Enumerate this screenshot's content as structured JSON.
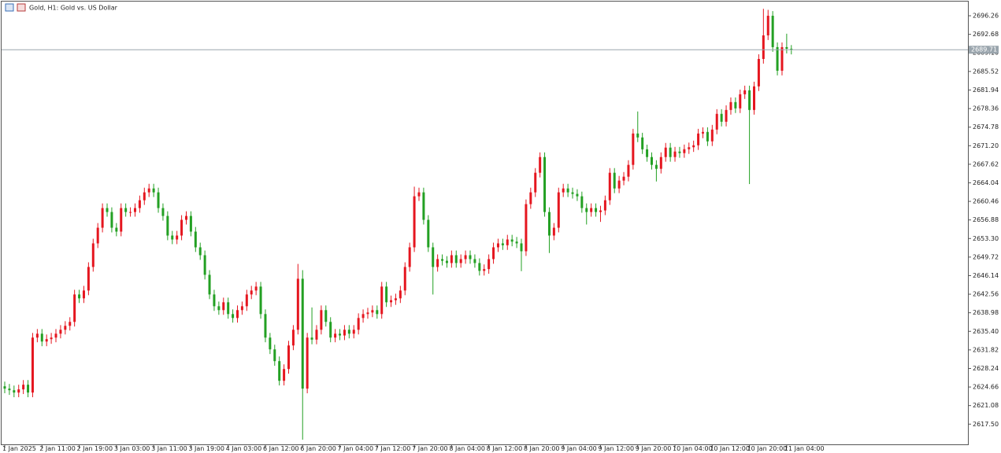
{
  "chart_data": {
    "type": "candlestick",
    "title": "Gold, H1:  Gold vs. US Dollar",
    "up_color": "#e5161f",
    "down_color": "#23a023",
    "ylim": [
      2613.6,
      2699.3
    ],
    "yticks": [
      2696.26,
      2692.68,
      {
        "value": 2689.1,
        "label": "2689.10"
      },
      2685.52,
      2681.94,
      2678.36,
      2674.78,
      {
        "value": 2671.2,
        "label": "2671.20"
      },
      2667.62,
      2664.04,
      2660.46,
      2656.88,
      {
        "value": 2653.3,
        "label": "2653.30"
      },
      2649.72,
      2646.14,
      2642.56,
      2638.98,
      {
        "value": 2635.4,
        "label": "2635.40"
      },
      2631.82,
      2628.24,
      2624.66,
      2621.08,
      {
        "value": 2617.5,
        "label": "2617.50"
      }
    ],
    "current_price": 2689.71,
    "categories": [
      "1 Jan 2025",
      null,
      null,
      null,
      null,
      null,
      null,
      null,
      "2 Jan 11:00",
      null,
      null,
      null,
      null,
      null,
      null,
      null,
      "2 Jan 19:00",
      null,
      null,
      null,
      null,
      null,
      null,
      null,
      "3 Jan 03:00",
      null,
      null,
      null,
      null,
      null,
      null,
      null,
      "3 Jan 11:00",
      null,
      null,
      null,
      null,
      null,
      null,
      null,
      "3 Jan 19:00",
      null,
      null,
      null,
      null,
      null,
      null,
      null,
      "4 Jan 03:00",
      null,
      null,
      null,
      null,
      null,
      null,
      null,
      "6 Jan 12:00",
      null,
      null,
      null,
      null,
      null,
      null,
      null,
      "6 Jan 20:00",
      null,
      null,
      null,
      null,
      null,
      null,
      null,
      "7 Jan 04:00",
      null,
      null,
      null,
      null,
      null,
      null,
      null,
      "7 Jan 12:00",
      null,
      null,
      null,
      null,
      null,
      null,
      null,
      "7 Jan 20:00",
      null,
      null,
      null,
      null,
      null,
      null,
      null,
      "8 Jan 04:00",
      null,
      null,
      null,
      null,
      null,
      null,
      null,
      "8 Jan 12:00",
      null,
      null,
      null,
      null,
      null,
      null,
      null,
      "8 Jan 20:00",
      null,
      null,
      null,
      null,
      null,
      null,
      null,
      "9 Jan 04:00",
      null,
      null,
      null,
      null,
      null,
      null,
      null,
      "9 Jan 12:00",
      null,
      null,
      null,
      null,
      null,
      null,
      null,
      "9 Jan 20:00",
      null,
      null,
      null,
      null,
      null,
      null,
      null,
      "10 Jan 04:00",
      null,
      null,
      null,
      null,
      null,
      null,
      null,
      "10 Jan 12:00",
      null,
      null,
      null,
      null,
      null,
      null,
      null,
      "10 Jan 20:00",
      null,
      null,
      null,
      null,
      null,
      null,
      null,
      "11 Jan 04:00",
      null
    ],
    "ohlc": [
      [
        2624.8,
        2625.7,
        2623.45,
        2624.35
      ],
      [
        2624.35,
        2625.25,
        2623.14,
        2624.04
      ],
      [
        2624.04,
        2624.94,
        2622.69,
        2623.59
      ],
      [
        2623.59,
        2625.1,
        2622.69,
        2624.2
      ],
      [
        2624.2,
        2626.0,
        2623.3,
        2625.1
      ],
      [
        2625.1,
        2626.0,
        2622.69,
        2623.59
      ],
      [
        2623.59,
        2635.09,
        2622.69,
        2634.19
      ],
      [
        2634.19,
        2635.84,
        2633.29,
        2634.94
      ],
      [
        2634.94,
        2635.84,
        2632.53,
        2633.43
      ],
      [
        2633.43,
        2634.79,
        2632.53,
        2633.89
      ],
      [
        2633.89,
        2635.09,
        2632.99,
        2634.19
      ],
      [
        2634.19,
        2635.84,
        2633.29,
        2634.94
      ],
      [
        2634.94,
        2636.6,
        2634.04,
        2635.7
      ],
      [
        2635.7,
        2637.36,
        2634.8,
        2636.46
      ],
      [
        2636.46,
        2638.12,
        2635.56,
        2637.22
      ],
      [
        2637.22,
        2643.41,
        2636.32,
        2642.51
      ],
      [
        2642.51,
        2643.41,
        2640.86,
        2641.76
      ],
      [
        2641.76,
        2644.17,
        2640.86,
        2643.27
      ],
      [
        2643.27,
        2648.71,
        2642.37,
        2647.81
      ],
      [
        2647.81,
        2653.26,
        2646.91,
        2652.36
      ],
      [
        2652.36,
        2656.28,
        2651.46,
        2655.38
      ],
      [
        2655.38,
        2660.07,
        2654.48,
        2659.17
      ],
      [
        2659.17,
        2660.07,
        2657.51,
        2658.41
      ],
      [
        2658.41,
        2659.31,
        2654.48,
        2655.38
      ],
      [
        2655.38,
        2656.28,
        2653.73,
        2654.63
      ],
      [
        2654.63,
        2660.07,
        2653.73,
        2659.17
      ],
      [
        2659.17,
        2660.07,
        2657.51,
        2658.41
      ],
      [
        2658.41,
        2659.31,
        2657.51,
        2658.41
      ],
      [
        2658.41,
        2660.07,
        2657.51,
        2659.17
      ],
      [
        2659.17,
        2661.58,
        2658.27,
        2660.68
      ],
      [
        2660.68,
        2663.1,
        2659.78,
        2662.2
      ],
      [
        2662.2,
        2663.85,
        2661.3,
        2662.95
      ],
      [
        2662.95,
        2663.85,
        2661.3,
        2662.2
      ],
      [
        2662.2,
        2663.1,
        2658.27,
        2659.17
      ],
      [
        2659.17,
        2660.07,
        2656.75,
        2657.65
      ],
      [
        2657.65,
        2658.55,
        2652.97,
        2653.87
      ],
      [
        2653.87,
        2654.77,
        2652.21,
        2653.11
      ],
      [
        2653.11,
        2654.77,
        2652.21,
        2653.87
      ],
      [
        2653.87,
        2657.8,
        2652.97,
        2656.9
      ],
      [
        2656.9,
        2658.55,
        2656.0,
        2657.65
      ],
      [
        2657.65,
        2658.55,
        2653.73,
        2654.63
      ],
      [
        2654.63,
        2655.53,
        2650.7,
        2651.6
      ],
      [
        2651.6,
        2652.5,
        2649.18,
        2650.08
      ],
      [
        2650.08,
        2650.98,
        2645.4,
        2646.3
      ],
      [
        2646.3,
        2647.2,
        2641.61,
        2642.51
      ],
      [
        2642.51,
        2643.41,
        2639.34,
        2640.24
      ],
      [
        2640.24,
        2641.14,
        2638.59,
        2639.49
      ],
      [
        2639.49,
        2641.9,
        2638.59,
        2641.0
      ],
      [
        2641.0,
        2641.9,
        2637.83,
        2638.73
      ],
      [
        2638.73,
        2639.63,
        2637.07,
        2637.97
      ],
      [
        2637.97,
        2640.39,
        2637.07,
        2639.49
      ],
      [
        2639.49,
        2641.14,
        2638.59,
        2640.24
      ],
      [
        2640.24,
        2643.41,
        2639.34,
        2642.51
      ],
      [
        2642.51,
        2644.17,
        2641.61,
        2643.27
      ],
      [
        2643.27,
        2644.93,
        2642.37,
        2644.03
      ],
      [
        2644.03,
        2644.93,
        2637.83,
        2638.73
      ],
      [
        2638.73,
        2639.63,
        2633.29,
        2634.19
      ],
      [
        2634.19,
        2635.09,
        2631.02,
        2631.92
      ],
      [
        2631.92,
        2632.82,
        2628.75,
        2629.65
      ],
      [
        2629.65,
        2630.55,
        2624.96,
        2625.86
      ],
      [
        2625.86,
        2629.03,
        2624.96,
        2628.13
      ],
      [
        2628.13,
        2633.57,
        2627.23,
        2632.67
      ],
      [
        2632.67,
        2636.6,
        2631.77,
        2635.7
      ],
      [
        2635.7,
        2648.4,
        2634.8,
        2645.54
      ],
      [
        2645.54,
        2647.2,
        2614.5,
        2624.35
      ],
      [
        2624.35,
        2635.09,
        2623.45,
        2634.19
      ],
      [
        2634.19,
        2640.0,
        2632.9,
        2633.8
      ],
      [
        2633.8,
        2636.6,
        2632.9,
        2635.7
      ],
      [
        2635.7,
        2640.39,
        2634.8,
        2639.49
      ],
      [
        2639.49,
        2640.39,
        2636.32,
        2637.22
      ],
      [
        2637.22,
        2638.12,
        2633.29,
        2634.19
      ],
      [
        2634.19,
        2635.84,
        2633.29,
        2634.94
      ],
      [
        2634.94,
        2635.84,
        2633.7,
        2634.6
      ],
      [
        2634.6,
        2636.6,
        2633.7,
        2635.7
      ],
      [
        2635.7,
        2636.6,
        2634.04,
        2634.94
      ],
      [
        2634.94,
        2636.6,
        2634.04,
        2635.7
      ],
      [
        2635.7,
        2638.87,
        2634.8,
        2637.97
      ],
      [
        2637.97,
        2639.63,
        2637.07,
        2638.73
      ],
      [
        2638.73,
        2639.93,
        2637.83,
        2639.03
      ],
      [
        2639.03,
        2640.39,
        2638.13,
        2639.49
      ],
      [
        2639.49,
        2640.39,
        2637.83,
        2638.73
      ],
      [
        2638.73,
        2644.93,
        2637.83,
        2644.03
      ],
      [
        2644.03,
        2644.93,
        2640.1,
        2641.0
      ],
      [
        2641.0,
        2642.3,
        2640.1,
        2641.4
      ],
      [
        2641.4,
        2642.66,
        2640.5,
        2641.76
      ],
      [
        2641.76,
        2644.17,
        2640.86,
        2643.27
      ],
      [
        2643.27,
        2648.71,
        2642.37,
        2647.81
      ],
      [
        2647.81,
        2652.5,
        2646.91,
        2651.6
      ],
      [
        2651.6,
        2663.3,
        2650.7,
        2661.44
      ],
      [
        2661.44,
        2663.1,
        2660.54,
        2662.2
      ],
      [
        2662.2,
        2663.1,
        2656.0,
        2656.9
      ],
      [
        2656.9,
        2657.8,
        2650.7,
        2651.6
      ],
      [
        2651.6,
        2652.5,
        2642.5,
        2647.81
      ],
      [
        2647.81,
        2650.23,
        2646.91,
        2649.33
      ],
      [
        2649.33,
        2650.23,
        2648.1,
        2649.0
      ],
      [
        2649.0,
        2649.9,
        2647.67,
        2648.57
      ],
      [
        2648.57,
        2650.98,
        2647.67,
        2650.08
      ],
      [
        2650.08,
        2650.98,
        2647.67,
        2648.57
      ],
      [
        2648.57,
        2650.23,
        2647.67,
        2649.33
      ],
      [
        2649.33,
        2650.98,
        2648.43,
        2650.08
      ],
      [
        2650.08,
        2650.98,
        2648.43,
        2649.33
      ],
      [
        2649.33,
        2650.23,
        2647.67,
        2648.57
      ],
      [
        2648.57,
        2649.47,
        2646.16,
        2647.06
      ],
      [
        2647.06,
        2648.3,
        2646.16,
        2647.4
      ],
      [
        2647.4,
        2650.23,
        2646.5,
        2649.33
      ],
      [
        2649.33,
        2652.5,
        2648.43,
        2651.6
      ],
      [
        2651.6,
        2653.26,
        2650.7,
        2652.36
      ],
      [
        2652.36,
        2653.26,
        2651.1,
        2652.0
      ],
      [
        2652.0,
        2654.01,
        2651.1,
        2653.11
      ],
      [
        2653.11,
        2654.01,
        2651.8,
        2652.7
      ],
      [
        2652.7,
        2653.6,
        2651.46,
        2652.36
      ],
      [
        2652.36,
        2653.26,
        2647.0,
        2650.84
      ],
      [
        2650.84,
        2660.83,
        2649.94,
        2659.93
      ],
      [
        2659.93,
        2663.1,
        2659.03,
        2662.2
      ],
      [
        2662.2,
        2666.88,
        2661.3,
        2665.98
      ],
      [
        2665.98,
        2669.91,
        2665.08,
        2669.01
      ],
      [
        2669.01,
        2669.91,
        2657.51,
        2658.41
      ],
      [
        2658.41,
        2659.31,
        2650.5,
        2653.87
      ],
      [
        2653.87,
        2656.28,
        2652.97,
        2655.38
      ],
      [
        2655.38,
        2663.1,
        2654.48,
        2662.2
      ],
      [
        2662.2,
        2663.85,
        2661.3,
        2662.95
      ],
      [
        2662.95,
        2663.85,
        2661.3,
        2662.2
      ],
      [
        2662.2,
        2663.1,
        2661.0,
        2661.9
      ],
      [
        2661.9,
        2662.8,
        2660.54,
        2661.44
      ],
      [
        2661.44,
        2662.34,
        2658.27,
        2659.17
      ],
      [
        2659.17,
        2660.07,
        2656.0,
        2658.41
      ],
      [
        2658.41,
        2660.07,
        2657.51,
        2659.17
      ],
      [
        2659.17,
        2660.07,
        2657.51,
        2658.41
      ],
      [
        2658.41,
        2659.61,
        2656.5,
        2658.71
      ],
      [
        2658.71,
        2661.58,
        2657.81,
        2660.68
      ],
      [
        2660.68,
        2666.88,
        2659.78,
        2665.98
      ],
      [
        2665.98,
        2666.88,
        2662.05,
        2662.95
      ],
      [
        2662.95,
        2665.37,
        2662.05,
        2664.47
      ],
      [
        2664.47,
        2666.12,
        2663.57,
        2665.22
      ],
      [
        2665.22,
        2668.4,
        2664.32,
        2667.5
      ],
      [
        2667.5,
        2674.45,
        2666.6,
        2673.55
      ],
      [
        2673.55,
        2677.8,
        2671.89,
        2672.79
      ],
      [
        2672.79,
        2673.69,
        2669.6,
        2670.5
      ],
      [
        2670.5,
        2671.4,
        2668.11,
        2669.01
      ],
      [
        2669.01,
        2669.91,
        2666.6,
        2667.5
      ],
      [
        2667.5,
        2668.4,
        2664.3,
        2666.74
      ],
      [
        2666.74,
        2669.91,
        2665.84,
        2669.01
      ],
      [
        2669.01,
        2671.73,
        2668.11,
        2670.83
      ],
      [
        2670.83,
        2671.73,
        2668.11,
        2669.01
      ],
      [
        2669.01,
        2670.97,
        2668.11,
        2670.07
      ],
      [
        2670.07,
        2670.97,
        2668.87,
        2669.77
      ],
      [
        2669.77,
        2671.42,
        2668.87,
        2670.52
      ],
      [
        2670.52,
        2671.8,
        2669.62,
        2670.9
      ],
      [
        2670.9,
        2672.18,
        2670.0,
        2671.28
      ],
      [
        2671.28,
        2674.45,
        2670.38,
        2673.55
      ],
      [
        2673.55,
        2674.75,
        2672.65,
        2673.85
      ],
      [
        2673.85,
        2674.75,
        2671.14,
        2672.04
      ],
      [
        2672.04,
        2675.21,
        2671.14,
        2674.31
      ],
      [
        2674.31,
        2678.24,
        2673.41,
        2677.34
      ],
      [
        2677.34,
        2678.24,
        2674.92,
        2675.82
      ],
      [
        2675.82,
        2678.99,
        2674.92,
        2678.09
      ],
      [
        2678.09,
        2680.51,
        2677.19,
        2679.61
      ],
      [
        2679.61,
        2680.51,
        2677.5,
        2678.4
      ],
      [
        2678.4,
        2682.02,
        2677.5,
        2681.12
      ],
      [
        2681.12,
        2682.78,
        2680.22,
        2681.88
      ],
      [
        2681.88,
        2682.78,
        2663.8,
        2678.09
      ],
      [
        2678.09,
        2683.54,
        2677.19,
        2682.64
      ],
      [
        2682.64,
        2688.83,
        2681.74,
        2687.93
      ],
      [
        2687.93,
        2697.6,
        2687.03,
        2692.48
      ],
      [
        2692.48,
        2697.4,
        2691.58,
        2696.26
      ],
      [
        2696.26,
        2697.16,
        2689.31,
        2690.21
      ],
      [
        2690.21,
        2691.11,
        2684.76,
        2685.66
      ],
      [
        2685.66,
        2691.11,
        2684.76,
        2690.21
      ],
      [
        2690.21,
        2692.8,
        2689.0,
        2689.9
      ],
      [
        2689.9,
        2690.61,
        2688.81,
        2689.71
      ]
    ]
  }
}
